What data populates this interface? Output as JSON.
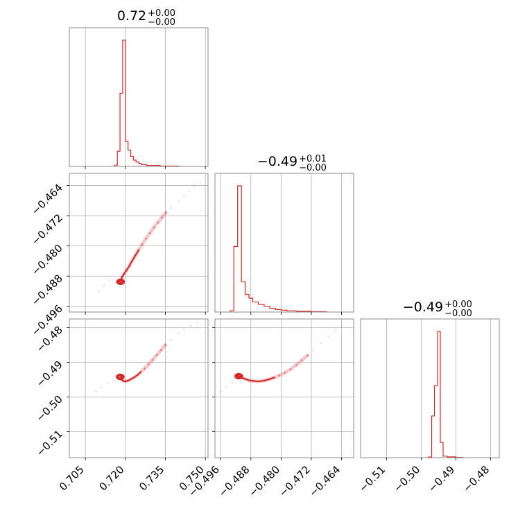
{
  "chart_data": {
    "type": "corner",
    "color": "#d62728",
    "panels": [
      {
        "id": "hist-0",
        "kind": "hist",
        "row": 0,
        "col": 0,
        "xlim": [
          0.699,
          0.751
        ],
        "title": {
          "value": "0.72",
          "upper": "+0.00",
          "lower": "−0.00"
        },
        "xticks": [
          0.705,
          0.72,
          0.735,
          0.75
        ],
        "bins": [
          [
            0.716,
            0.717,
            0.01
          ],
          [
            0.717,
            0.718,
            0.12
          ],
          [
            0.718,
            0.719,
            0.58
          ],
          [
            0.719,
            0.72,
            1.0
          ],
          [
            0.72,
            0.721,
            0.2
          ],
          [
            0.721,
            0.722,
            0.13
          ],
          [
            0.722,
            0.723,
            0.08
          ],
          [
            0.723,
            0.724,
            0.05
          ],
          [
            0.724,
            0.725,
            0.035
          ],
          [
            0.725,
            0.726,
            0.025
          ],
          [
            0.726,
            0.728,
            0.015
          ],
          [
            0.728,
            0.733,
            0.008
          ],
          [
            0.733,
            0.74,
            0.003
          ]
        ]
      },
      {
        "id": "hist-1",
        "kind": "hist",
        "row": 1,
        "col": 1,
        "xlim": [
          -0.4975,
          -0.4608
        ],
        "title": {
          "value": "−0.49",
          "upper": "+0.01",
          "lower": "−0.00"
        },
        "xticks": [
          -0.496,
          -0.488,
          -0.48,
          -0.472,
          -0.464
        ],
        "bins": [
          [
            -0.4935,
            -0.4925,
            0.01
          ],
          [
            -0.4925,
            -0.4915,
            0.52
          ],
          [
            -0.4915,
            -0.4905,
            1.0
          ],
          [
            -0.4905,
            -0.4895,
            0.24
          ],
          [
            -0.4895,
            -0.4885,
            0.14
          ],
          [
            -0.4885,
            -0.4875,
            0.11
          ],
          [
            -0.4875,
            -0.486,
            0.08
          ],
          [
            -0.486,
            -0.4845,
            0.06
          ],
          [
            -0.4845,
            -0.483,
            0.045
          ],
          [
            -0.483,
            -0.4815,
            0.03
          ],
          [
            -0.4815,
            -0.48,
            0.02
          ],
          [
            -0.48,
            -0.4785,
            0.015
          ],
          [
            -0.4785,
            -0.476,
            0.01
          ],
          [
            -0.476,
            -0.472,
            0.006
          ],
          [
            -0.472,
            -0.468,
            0.003
          ]
        ]
      },
      {
        "id": "hist-2",
        "kind": "hist",
        "row": 2,
        "col": 2,
        "xlim": [
          -0.5175,
          -0.4775
        ],
        "title": {
          "value": "−0.49",
          "upper": "+0.00",
          "lower": "−0.00"
        },
        "xticks": [
          -0.51,
          -0.5,
          -0.49,
          -0.48
        ],
        "bins": [
          [
            -0.498,
            -0.497,
            0.005
          ],
          [
            -0.497,
            -0.4962,
            0.33
          ],
          [
            -0.4962,
            -0.4953,
            0.57
          ],
          [
            -0.4953,
            -0.4945,
            1.0
          ],
          [
            -0.4945,
            -0.4937,
            0.12
          ],
          [
            -0.4937,
            -0.4925,
            0.012
          ],
          [
            -0.4925,
            -0.49,
            0.006
          ],
          [
            -0.49,
            -0.488,
            0.002
          ]
        ]
      },
      {
        "id": "scatter-1-0",
        "kind": "scatter",
        "row": 1,
        "col": 0,
        "xlim": [
          0.699,
          0.751
        ],
        "ylim": [
          -0.4975,
          -0.4608
        ],
        "yticks": [
          -0.464,
          -0.472,
          -0.48,
          -0.488,
          -0.496
        ],
        "points": [
          [
            0.718,
            -0.4896
          ],
          [
            0.7183,
            -0.489
          ],
          [
            0.7188,
            -0.4882
          ],
          [
            0.7195,
            -0.4874
          ],
          [
            0.7205,
            -0.4864
          ],
          [
            0.7215,
            -0.4853
          ],
          [
            0.7225,
            -0.484
          ],
          [
            0.7237,
            -0.4826
          ],
          [
            0.725,
            -0.4811
          ],
          [
            0.7263,
            -0.4796
          ],
          [
            0.7277,
            -0.4781
          ],
          [
            0.7292,
            -0.4766
          ],
          [
            0.7307,
            -0.4751
          ],
          [
            0.7322,
            -0.4738
          ],
          [
            0.7337,
            -0.4725
          ],
          [
            0.7352,
            -0.4712
          ]
        ],
        "sparse": [
          [
            0.71,
            -0.492
          ],
          [
            0.712,
            -0.4905
          ],
          [
            0.714,
            -0.489
          ],
          [
            0.737,
            -0.47
          ],
          [
            0.74,
            -0.4682
          ],
          [
            0.742,
            -0.4668
          ],
          [
            0.744,
            -0.4655
          ],
          [
            0.746,
            -0.4641
          ],
          [
            0.748,
            -0.463
          ]
        ],
        "cluster": [
          0.7182,
          -0.4895
        ]
      },
      {
        "id": "scatter-2-0",
        "kind": "scatter",
        "row": 2,
        "col": 0,
        "xlim": [
          0.699,
          0.751
        ],
        "ylim": [
          -0.5175,
          -0.4775
        ],
        "yticks": [
          -0.48,
          -0.49,
          -0.5,
          -0.51
        ],
        "points": [
          [
            0.718,
            -0.4936
          ],
          [
            0.7185,
            -0.495
          ],
          [
            0.7192,
            -0.4954
          ],
          [
            0.72,
            -0.4955
          ],
          [
            0.721,
            -0.4953
          ],
          [
            0.722,
            -0.4949
          ],
          [
            0.7232,
            -0.4944
          ],
          [
            0.7245,
            -0.4937
          ],
          [
            0.7258,
            -0.4928
          ],
          [
            0.7272,
            -0.4918
          ],
          [
            0.7287,
            -0.4906
          ],
          [
            0.7302,
            -0.4893
          ],
          [
            0.7318,
            -0.4879
          ],
          [
            0.7334,
            -0.4865
          ],
          [
            0.735,
            -0.485
          ]
        ],
        "sparse": [
          [
            0.709,
            -0.4985
          ],
          [
            0.711,
            -0.4972
          ],
          [
            0.7135,
            -0.496
          ],
          [
            0.737,
            -0.4835
          ],
          [
            0.74,
            -0.4815
          ],
          [
            0.742,
            -0.4805
          ],
          [
            0.7445,
            -0.4795
          ],
          [
            0.747,
            -0.4785
          ]
        ],
        "cluster": [
          0.7181,
          -0.4942
        ]
      },
      {
        "id": "scatter-2-1",
        "kind": "scatter",
        "row": 2,
        "col": 1,
        "xlim": [
          -0.4975,
          -0.4608
        ],
        "ylim": [
          -0.5175,
          -0.4775
        ],
        "points": [
          [
            -0.4913,
            -0.494
          ],
          [
            -0.4905,
            -0.4944
          ],
          [
            -0.4895,
            -0.4948
          ],
          [
            -0.4885,
            -0.4952
          ],
          [
            -0.4872,
            -0.4954
          ],
          [
            -0.486,
            -0.4955
          ],
          [
            -0.4845,
            -0.4953
          ],
          [
            -0.4832,
            -0.4949
          ],
          [
            -0.4818,
            -0.4944
          ],
          [
            -0.4805,
            -0.4938
          ],
          [
            -0.479,
            -0.493
          ],
          [
            -0.4775,
            -0.492
          ],
          [
            -0.476,
            -0.4908
          ],
          [
            -0.4745,
            -0.4894
          ],
          [
            -0.473,
            -0.488
          ]
        ],
        "sparse": [
          [
            -0.496,
            -0.4985
          ],
          [
            -0.4945,
            -0.4972
          ],
          [
            -0.493,
            -0.4958
          ],
          [
            -0.4715,
            -0.4865
          ],
          [
            -0.4695,
            -0.4845
          ],
          [
            -0.4675,
            -0.4825
          ],
          [
            -0.4655,
            -0.4808
          ],
          [
            -0.464,
            -0.4795
          ]
        ],
        "cluster": [
          -0.4912,
          -0.494
        ]
      }
    ]
  }
}
